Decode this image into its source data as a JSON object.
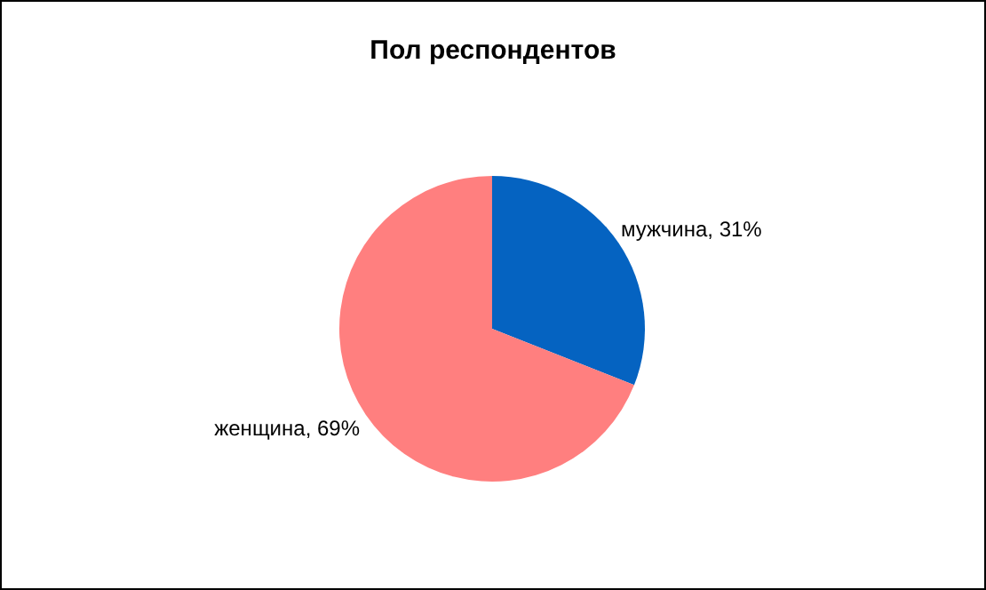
{
  "chart_data": {
    "type": "pie",
    "title": "Пол респондентов",
    "categories": [
      "мужчина",
      "женщина"
    ],
    "values": [
      31,
      69
    ],
    "colors": [
      "#0563c1",
      "#ff7f7f"
    ],
    "value_labels": [
      "31%",
      "69%"
    ]
  }
}
